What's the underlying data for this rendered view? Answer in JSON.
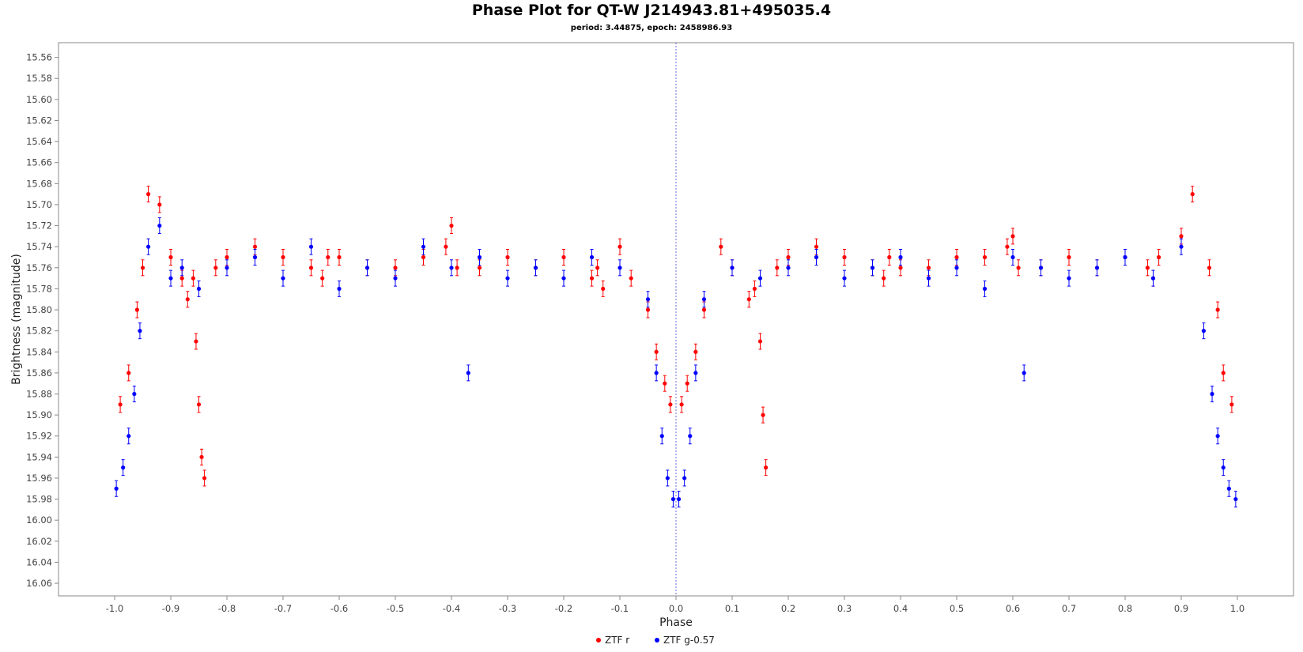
{
  "chart_data": {
    "type": "scatter",
    "title": "Phase Plot for QT-W J214943.81+495035.4",
    "subtitle": "period: 3.44875, epoch: 2458986.93",
    "xlabel": "Phase",
    "ylabel": "Brightness (magnitude)",
    "xlim": [
      -1.1,
      1.1
    ],
    "ylim": [
      15.546,
      16.072
    ],
    "y_inverted": true,
    "x_ticks": [
      -1.0,
      -0.9,
      -0.8,
      -0.7,
      -0.6,
      -0.5,
      -0.4,
      -0.3,
      -0.2,
      -0.1,
      0.0,
      0.1,
      0.2,
      0.3,
      0.4,
      0.5,
      0.6,
      0.7,
      0.8,
      0.9,
      1.0
    ],
    "x_tick_labels": [
      "-1.0",
      "-0.9",
      "-0.8",
      "-0.7",
      "-0.6",
      "-0.5",
      "-0.4",
      "-0.3",
      "-0.2",
      "-0.1",
      "0.0",
      "0.1",
      "0.2",
      "0.3",
      "0.4",
      "0.5",
      "0.6",
      "0.7",
      "0.8",
      "0.9",
      "1.0"
    ],
    "y_ticks": [
      15.56,
      15.58,
      15.6,
      15.62,
      15.64,
      15.66,
      15.68,
      15.7,
      15.72,
      15.74,
      15.76,
      15.78,
      15.8,
      15.82,
      15.84,
      15.86,
      15.88,
      15.9,
      15.92,
      15.94,
      15.96,
      15.98,
      16.0,
      16.02,
      16.04,
      16.06
    ],
    "y_tick_labels": [
      "15.56",
      "15.58",
      "15.60",
      "15.62",
      "15.64",
      "15.66",
      "15.68",
      "15.70",
      "15.72",
      "15.74",
      "15.76",
      "15.78",
      "15.80",
      "15.82",
      "15.84",
      "15.86",
      "15.88",
      "15.90",
      "15.92",
      "15.94",
      "15.96",
      "15.98",
      "16.00",
      "16.02",
      "16.04",
      "16.06"
    ],
    "grid": false,
    "reference_line": {
      "x": 0.0,
      "style": "dashed"
    },
    "legend_position": "bottom-center",
    "series": [
      {
        "name": "ZTF r",
        "color": "#ff0000",
        "x": [
          -0.99,
          -0.975,
          -0.96,
          -0.95,
          -0.94,
          -0.92,
          -0.9,
          -0.88,
          -0.87,
          -0.86,
          -0.855,
          -0.85,
          -0.845,
          -0.84,
          -0.82,
          -0.8,
          -0.75,
          -0.7,
          -0.65,
          -0.63,
          -0.62,
          -0.6,
          -0.55,
          -0.5,
          -0.45,
          -0.41,
          -0.4,
          -0.39,
          -0.35,
          -0.3,
          -0.25,
          -0.2,
          -0.15,
          -0.14,
          -0.13,
          -0.1,
          -0.08,
          -0.05,
          -0.035,
          -0.02,
          -0.01,
          0.01,
          0.02,
          0.035,
          0.05,
          0.08,
          0.1,
          0.13,
          0.14,
          0.15,
          0.155,
          0.16,
          0.18,
          0.2,
          0.25,
          0.3,
          0.35,
          0.37,
          0.38,
          0.4,
          0.45,
          0.5,
          0.55,
          0.59,
          0.6,
          0.61,
          0.65,
          0.7,
          0.75,
          0.8,
          0.84,
          0.85,
          0.86,
          0.9,
          0.92,
          0.95,
          0.965,
          0.975,
          0.99
        ],
        "y": [
          15.89,
          15.86,
          15.8,
          15.76,
          15.69,
          15.7,
          15.75,
          15.77,
          15.79,
          15.77,
          15.83,
          15.89,
          15.94,
          15.96,
          15.76,
          15.75,
          15.74,
          15.75,
          15.76,
          15.77,
          15.75,
          15.75,
          15.76,
          15.76,
          15.75,
          15.74,
          15.72,
          15.76,
          15.76,
          15.75,
          15.76,
          15.75,
          15.77,
          15.76,
          15.78,
          15.74,
          15.77,
          15.8,
          15.84,
          15.87,
          15.89,
          15.89,
          15.87,
          15.84,
          15.8,
          15.74,
          15.76,
          15.79,
          15.78,
          15.83,
          15.9,
          15.95,
          15.76,
          15.75,
          15.74,
          15.75,
          15.76,
          15.77,
          15.75,
          15.76,
          15.76,
          15.75,
          15.75,
          15.74,
          15.73,
          15.76,
          15.76,
          15.75,
          15.76,
          15.75,
          15.76,
          15.77,
          15.75,
          15.73,
          15.69,
          15.76,
          15.8,
          15.86,
          15.89
        ]
      },
      {
        "name": "ZTF g-0.57",
        "color": "#0000ff",
        "x": [
          -0.997,
          -0.985,
          -0.975,
          -0.965,
          -0.955,
          -0.94,
          -0.92,
          -0.9,
          -0.88,
          -0.85,
          -0.8,
          -0.75,
          -0.7,
          -0.65,
          -0.6,
          -0.55,
          -0.5,
          -0.45,
          -0.4,
          -0.37,
          -0.35,
          -0.3,
          -0.25,
          -0.2,
          -0.15,
          -0.1,
          -0.05,
          -0.035,
          -0.025,
          -0.015,
          -0.005,
          0.005,
          0.015,
          0.025,
          0.035,
          0.05,
          0.1,
          0.15,
          0.2,
          0.25,
          0.3,
          0.35,
          0.4,
          0.45,
          0.5,
          0.55,
          0.6,
          0.62,
          0.65,
          0.7,
          0.75,
          0.8,
          0.85,
          0.9,
          0.94,
          0.955,
          0.965,
          0.975,
          0.985,
          0.997
        ],
        "y": [
          15.97,
          15.95,
          15.92,
          15.88,
          15.82,
          15.74,
          15.72,
          15.77,
          15.76,
          15.78,
          15.76,
          15.75,
          15.77,
          15.74,
          15.78,
          15.76,
          15.77,
          15.74,
          15.76,
          15.86,
          15.75,
          15.77,
          15.76,
          15.77,
          15.75,
          15.76,
          15.79,
          15.86,
          15.92,
          15.96,
          15.98,
          15.98,
          15.96,
          15.92,
          15.86,
          15.79,
          15.76,
          15.77,
          15.76,
          15.75,
          15.77,
          15.76,
          15.75,
          15.77,
          15.76,
          15.78,
          15.75,
          15.86,
          15.76,
          15.77,
          15.76,
          15.75,
          15.77,
          15.74,
          15.82,
          15.88,
          15.92,
          15.95,
          15.97,
          15.98
        ]
      }
    ]
  }
}
